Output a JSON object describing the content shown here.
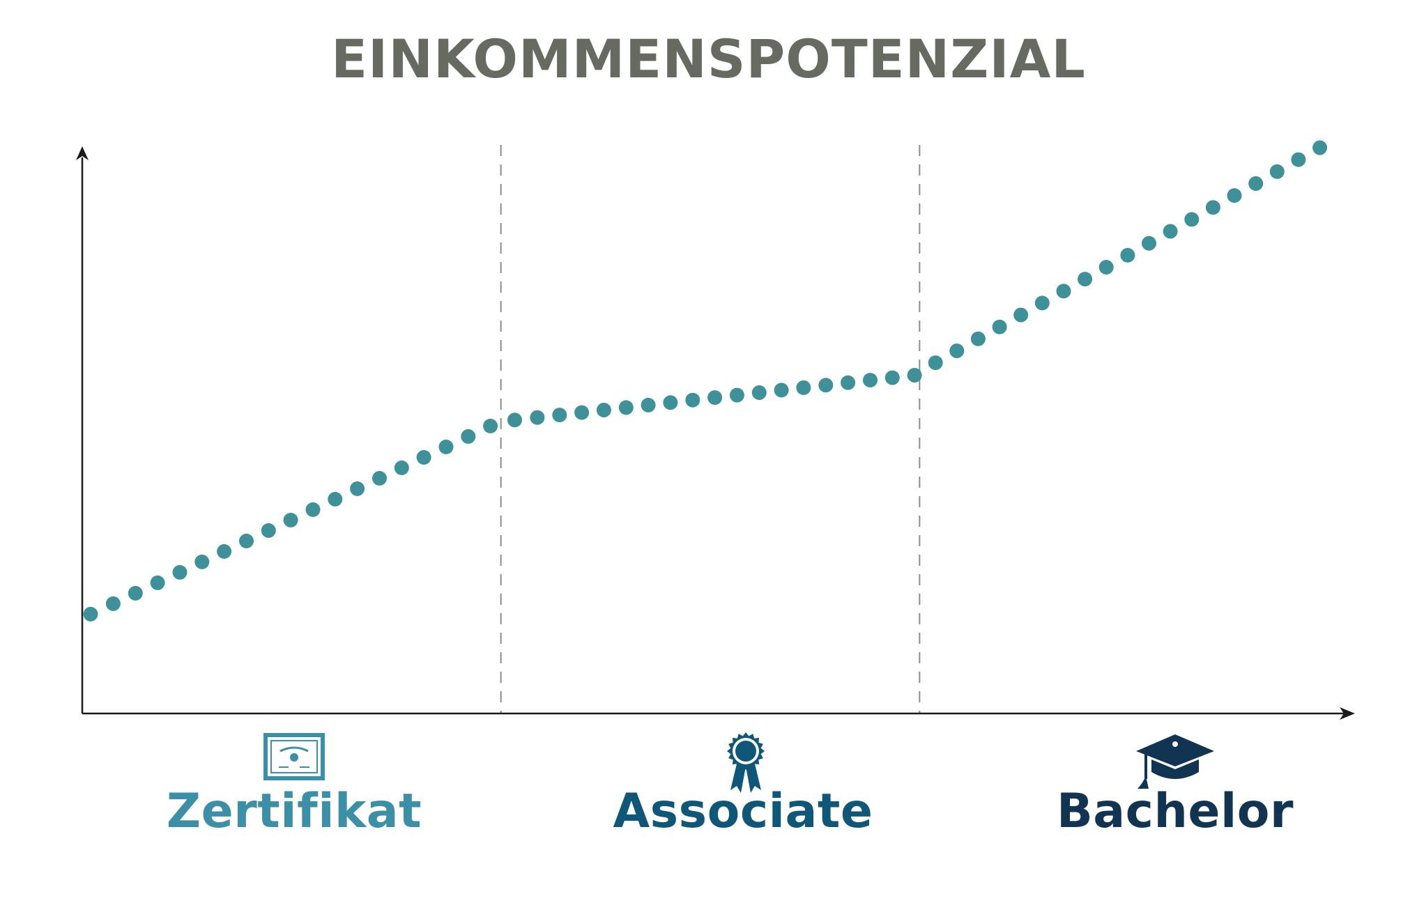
{
  "title": "EINKOMMENSPOTENZIAL",
  "colors": {
    "title": "#666a61",
    "dots": "#3e9199",
    "axis": "#1a1a1a",
    "divider": "#8c8c8c",
    "zertifikat": "#3b8fa6",
    "associate": "#0e5778",
    "bachelor": "#123453"
  },
  "categories": [
    {
      "label": "Zertifikat",
      "icon": "certificate-icon",
      "color_key": "zertifikat"
    },
    {
      "label": "Associate",
      "icon": "award-ribbon-icon",
      "color_key": "associate"
    },
    {
      "label": "Bachelor",
      "icon": "graduation-cap-icon",
      "color_key": "bachelor"
    }
  ],
  "chart_data": {
    "type": "scatter",
    "title": "EINKOMMENSPOTENZIAL",
    "xlabel": "",
    "ylabel": "",
    "x_tick_labels": [
      "Zertifikat",
      "Associate",
      "Bachelor"
    ],
    "xlim": [
      0,
      3
    ],
    "ylim": [
      0,
      100
    ],
    "grid": false,
    "dividers_at": [
      1,
      2
    ],
    "series": [
      {
        "segment": "Zertifikat",
        "x": [
          0.02,
          0.074,
          0.127,
          0.18,
          0.233,
          0.286,
          0.339,
          0.392,
          0.445,
          0.498,
          0.551,
          0.604,
          0.657,
          0.71,
          0.763,
          0.816,
          0.869,
          0.922,
          0.975
        ],
        "y": [
          11.0,
          13.1,
          15.2,
          17.3,
          19.4,
          21.5,
          23.6,
          25.7,
          27.8,
          29.9,
          32.0,
          34.1,
          36.2,
          38.3,
          40.4,
          42.5,
          44.6,
          46.7,
          48.8
        ]
      },
      {
        "segment": "Associate",
        "x": [
          1.033,
          1.087,
          1.14,
          1.193,
          1.246,
          1.299,
          1.352,
          1.405,
          1.458,
          1.511,
          1.564,
          1.617,
          1.67,
          1.723,
          1.776,
          1.829,
          1.882,
          1.935,
          1.988
        ],
        "y": [
          50.0,
          50.5,
          51.0,
          51.5,
          52.0,
          52.5,
          53.0,
          53.5,
          54.0,
          54.5,
          55.0,
          55.5,
          56.0,
          56.5,
          57.0,
          57.5,
          58.0,
          58.5,
          59.0
        ]
      },
      {
        "segment": "Bachelor",
        "x": [
          2.038,
          2.089,
          2.14,
          2.191,
          2.242,
          2.293,
          2.344,
          2.395,
          2.446,
          2.497,
          2.548,
          2.599,
          2.65,
          2.701,
          2.752,
          2.803,
          2.854,
          2.905,
          2.956
        ],
        "y": [
          61.5,
          63.9,
          66.3,
          68.7,
          71.1,
          73.5,
          75.9,
          78.3,
          80.7,
          83.1,
          85.5,
          87.9,
          90.3,
          92.7,
          95.1,
          97.5,
          99.9,
          102.3,
          104.7
        ]
      }
    ]
  }
}
